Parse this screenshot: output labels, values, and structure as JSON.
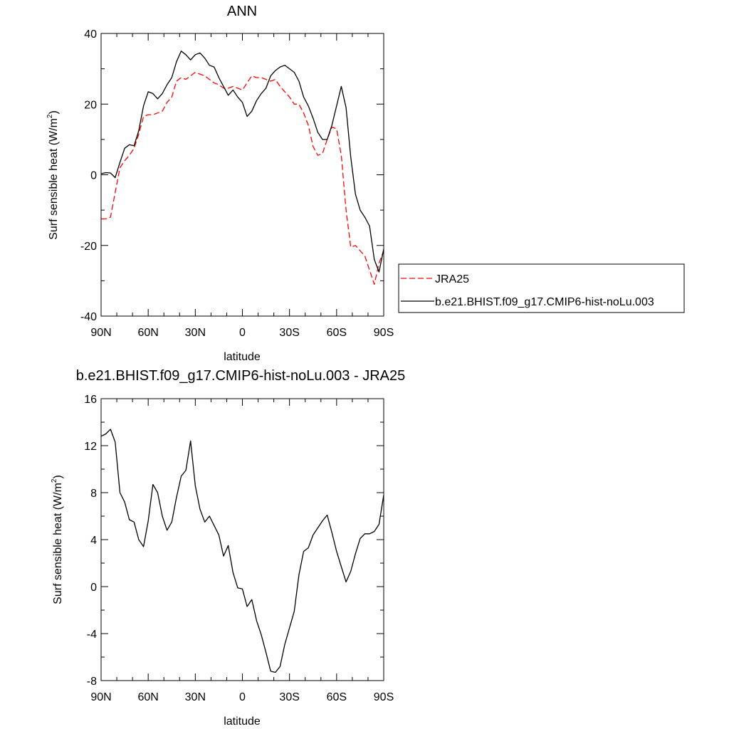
{
  "chart_data": [
    {
      "type": "line",
      "title": "ANN",
      "xlabel": "latitude",
      "ylabel": "Surf sensible heat (W/m",
      "ylabel_sup": "2",
      "ylabel_end": ")",
      "xlim": [
        90,
        -90
      ],
      "ylim": [
        -40,
        40
      ],
      "xticks": [
        {
          "value": 90,
          "label": "90N"
        },
        {
          "value": 60,
          "label": "60N"
        },
        {
          "value": 30,
          "label": "30N"
        },
        {
          "value": 0,
          "label": "0"
        },
        {
          "value": -30,
          "label": "30S"
        },
        {
          "value": -60,
          "label": "60S"
        },
        {
          "value": -90,
          "label": "90S"
        }
      ],
      "yticks": [
        {
          "value": 40,
          "label": "40"
        },
        {
          "value": 20,
          "label": "20"
        },
        {
          "value": 0,
          "label": "0"
        },
        {
          "value": -20,
          "label": "-20"
        },
        {
          "value": -40,
          "label": "-40"
        }
      ],
      "legend": {
        "position": "right"
      },
      "series": [
        {
          "name": "JRA25",
          "color": "#ff0000",
          "style": "dashed",
          "points": [
            [
              90,
              -12.5
            ],
            [
              87,
              -12.5
            ],
            [
              84,
              -12
            ],
            [
              81,
              -5
            ],
            [
              78,
              2
            ],
            [
              75,
              4
            ],
            [
              72,
              5.5
            ],
            [
              69,
              7.5
            ],
            [
              66,
              11.5
            ],
            [
              63,
              16.5
            ],
            [
              60,
              17
            ],
            [
              57,
              17
            ],
            [
              54,
              17.5
            ],
            [
              51,
              18
            ],
            [
              48,
              20.5
            ],
            [
              45,
              22
            ],
            [
              42,
              26.5
            ],
            [
              39,
              27.5
            ],
            [
              36,
              27
            ],
            [
              33,
              28
            ],
            [
              30,
              29
            ],
            [
              27,
              28.5
            ],
            [
              24,
              28
            ],
            [
              21,
              27
            ],
            [
              18,
              26
            ],
            [
              15,
              25.5
            ],
            [
              12,
              24.5
            ],
            [
              9,
              24.5
            ],
            [
              6,
              25
            ],
            [
              3,
              24.5
            ],
            [
              0,
              24
            ],
            [
              -3,
              26
            ],
            [
              -6,
              28
            ],
            [
              -9,
              27.5
            ],
            [
              -12,
              27.5
            ],
            [
              -15,
              27
            ],
            [
              -18,
              26.5
            ],
            [
              -21,
              27
            ],
            [
              -24,
              25
            ],
            [
              -27,
              23.5
            ],
            [
              -30,
              22
            ],
            [
              -33,
              20
            ],
            [
              -36,
              20
            ],
            [
              -39,
              17.5
            ],
            [
              -42,
              14
            ],
            [
              -45,
              8
            ],
            [
              -48,
              5.5
            ],
            [
              -51,
              6
            ],
            [
              -54,
              10
            ],
            [
              -57,
              13.5
            ],
            [
              -60,
              13
            ],
            [
              -63,
              5.5
            ],
            [
              -66,
              -10
            ],
            [
              -69,
              -20.5
            ],
            [
              -72,
              -20
            ],
            [
              -75,
              -21.5
            ],
            [
              -78,
              -23
            ],
            [
              -81,
              -27
            ],
            [
              -84,
              -31
            ],
            [
              -87,
              -25
            ],
            [
              -90,
              -21.5
            ]
          ]
        },
        {
          "name": "b.e21.BHIST.f09_g17.CMIP6-hist-noLu.003",
          "color": "#000000",
          "style": "solid",
          "points": [
            [
              90,
              0.3
            ],
            [
              87,
              0.6
            ],
            [
              84,
              0.5
            ],
            [
              81,
              -0.8
            ],
            [
              78,
              3.5
            ],
            [
              75,
              7.5
            ],
            [
              72,
              8.5
            ],
            [
              69,
              8.2
            ],
            [
              66,
              12.5
            ],
            [
              63,
              19.5
            ],
            [
              60,
              23.5
            ],
            [
              57,
              23
            ],
            [
              54,
              21.5
            ],
            [
              51,
              23
            ],
            [
              48,
              25.5
            ],
            [
              45,
              27.5
            ],
            [
              42,
              32
            ],
            [
              39,
              35
            ],
            [
              36,
              34
            ],
            [
              33,
              32.5
            ],
            [
              30,
              34
            ],
            [
              27,
              34.5
            ],
            [
              24,
              33
            ],
            [
              21,
              31
            ],
            [
              18,
              30.5
            ],
            [
              15,
              27.5
            ],
            [
              12,
              25
            ],
            [
              9,
              22.5
            ],
            [
              6,
              24
            ],
            [
              3,
              22
            ],
            [
              0,
              20.5
            ],
            [
              -3,
              16.5
            ],
            [
              -6,
              18
            ],
            [
              -9,
              21
            ],
            [
              -12,
              23
            ],
            [
              -15,
              24.5
            ],
            [
              -18,
              28
            ],
            [
              -21,
              29.5
            ],
            [
              -24,
              30.5
            ],
            [
              -27,
              31
            ],
            [
              -30,
              30
            ],
            [
              -33,
              29
            ],
            [
              -36,
              26.5
            ],
            [
              -39,
              22
            ],
            [
              -42,
              19.5
            ],
            [
              -45,
              16
            ],
            [
              -48,
              12
            ],
            [
              -51,
              10
            ],
            [
              -54,
              10
            ],
            [
              -57,
              14
            ],
            [
              -60,
              19.5
            ],
            [
              -63,
              25
            ],
            [
              -66,
              19
            ],
            [
              -69,
              5
            ],
            [
              -72,
              -5.5
            ],
            [
              -75,
              -10
            ],
            [
              -78,
              -12
            ],
            [
              -81,
              -14.5
            ],
            [
              -84,
              -24
            ],
            [
              -87,
              -27.5
            ],
            [
              -90,
              -21
            ]
          ]
        }
      ]
    },
    {
      "type": "line",
      "title": "b.e21.BHIST.f09_g17.CMIP6-hist-noLu.003 - JRA25",
      "xlabel": "latitude",
      "ylabel": "Surf sensible heat (W/m",
      "ylabel_sup": "2",
      "ylabel_end": ")",
      "xlim": [
        90,
        -90
      ],
      "ylim": [
        -8,
        16
      ],
      "xticks": [
        {
          "value": 90,
          "label": "90N"
        },
        {
          "value": 60,
          "label": "60N"
        },
        {
          "value": 30,
          "label": "30N"
        },
        {
          "value": 0,
          "label": "0"
        },
        {
          "value": -30,
          "label": "30S"
        },
        {
          "value": -60,
          "label": "60S"
        },
        {
          "value": -90,
          "label": "90S"
        }
      ],
      "yticks": [
        {
          "value": 16,
          "label": "16"
        },
        {
          "value": 12,
          "label": "12"
        },
        {
          "value": 8,
          "label": "8"
        },
        {
          "value": 4,
          "label": "4"
        },
        {
          "value": 0,
          "label": "0"
        },
        {
          "value": -4,
          "label": "-4"
        },
        {
          "value": -8,
          "label": "-8"
        }
      ],
      "series": [
        {
          "color": "#000000",
          "style": "solid",
          "points": [
            [
              90,
              12.8
            ],
            [
              87,
              13
            ],
            [
              84,
              13.4
            ],
            [
              81,
              12.3
            ],
            [
              78,
              8
            ],
            [
              75,
              7.2
            ],
            [
              72,
              5.7
            ],
            [
              69,
              5.5
            ],
            [
              66,
              4
            ],
            [
              63,
              3.4
            ],
            [
              60,
              5.6
            ],
            [
              57,
              8.7
            ],
            [
              54,
              8
            ],
            [
              51,
              6
            ],
            [
              48,
              4.8
            ],
            [
              45,
              5.5
            ],
            [
              42,
              7.6
            ],
            [
              39,
              9.4
            ],
            [
              36,
              9.9
            ],
            [
              33,
              12.4
            ],
            [
              30,
              8.6
            ],
            [
              27,
              6.6
            ],
            [
              24,
              5.5
            ],
            [
              21,
              6
            ],
            [
              18,
              5.2
            ],
            [
              15,
              4.4
            ],
            [
              12,
              2.6
            ],
            [
              9,
              3.5
            ],
            [
              6,
              1.2
            ],
            [
              3,
              -0.1
            ],
            [
              0,
              -0.2
            ],
            [
              -3,
              -1.7
            ],
            [
              -6,
              -1.1
            ],
            [
              -9,
              -2.9
            ],
            [
              -12,
              -4.1
            ],
            [
              -15,
              -5.6
            ],
            [
              -18,
              -7.2
            ],
            [
              -21,
              -7.3
            ],
            [
              -24,
              -6.8
            ],
            [
              -27,
              -4.9
            ],
            [
              -30,
              -3.5
            ],
            [
              -33,
              -2.1
            ],
            [
              -36,
              1
            ],
            [
              -39,
              3
            ],
            [
              -42,
              3.3
            ],
            [
              -45,
              4.4
            ],
            [
              -48,
              5
            ],
            [
              -51,
              5.6
            ],
            [
              -54,
              6.1
            ],
            [
              -57,
              4.6
            ],
            [
              -60,
              3
            ],
            [
              -63,
              1.7
            ],
            [
              -66,
              0.4
            ],
            [
              -69,
              1.3
            ],
            [
              -72,
              2.8
            ],
            [
              -75,
              4.1
            ],
            [
              -78,
              4.5
            ],
            [
              -81,
              4.5
            ],
            [
              -84,
              4.7
            ],
            [
              -87,
              5.3
            ],
            [
              -90,
              7.8
            ]
          ]
        }
      ]
    }
  ]
}
